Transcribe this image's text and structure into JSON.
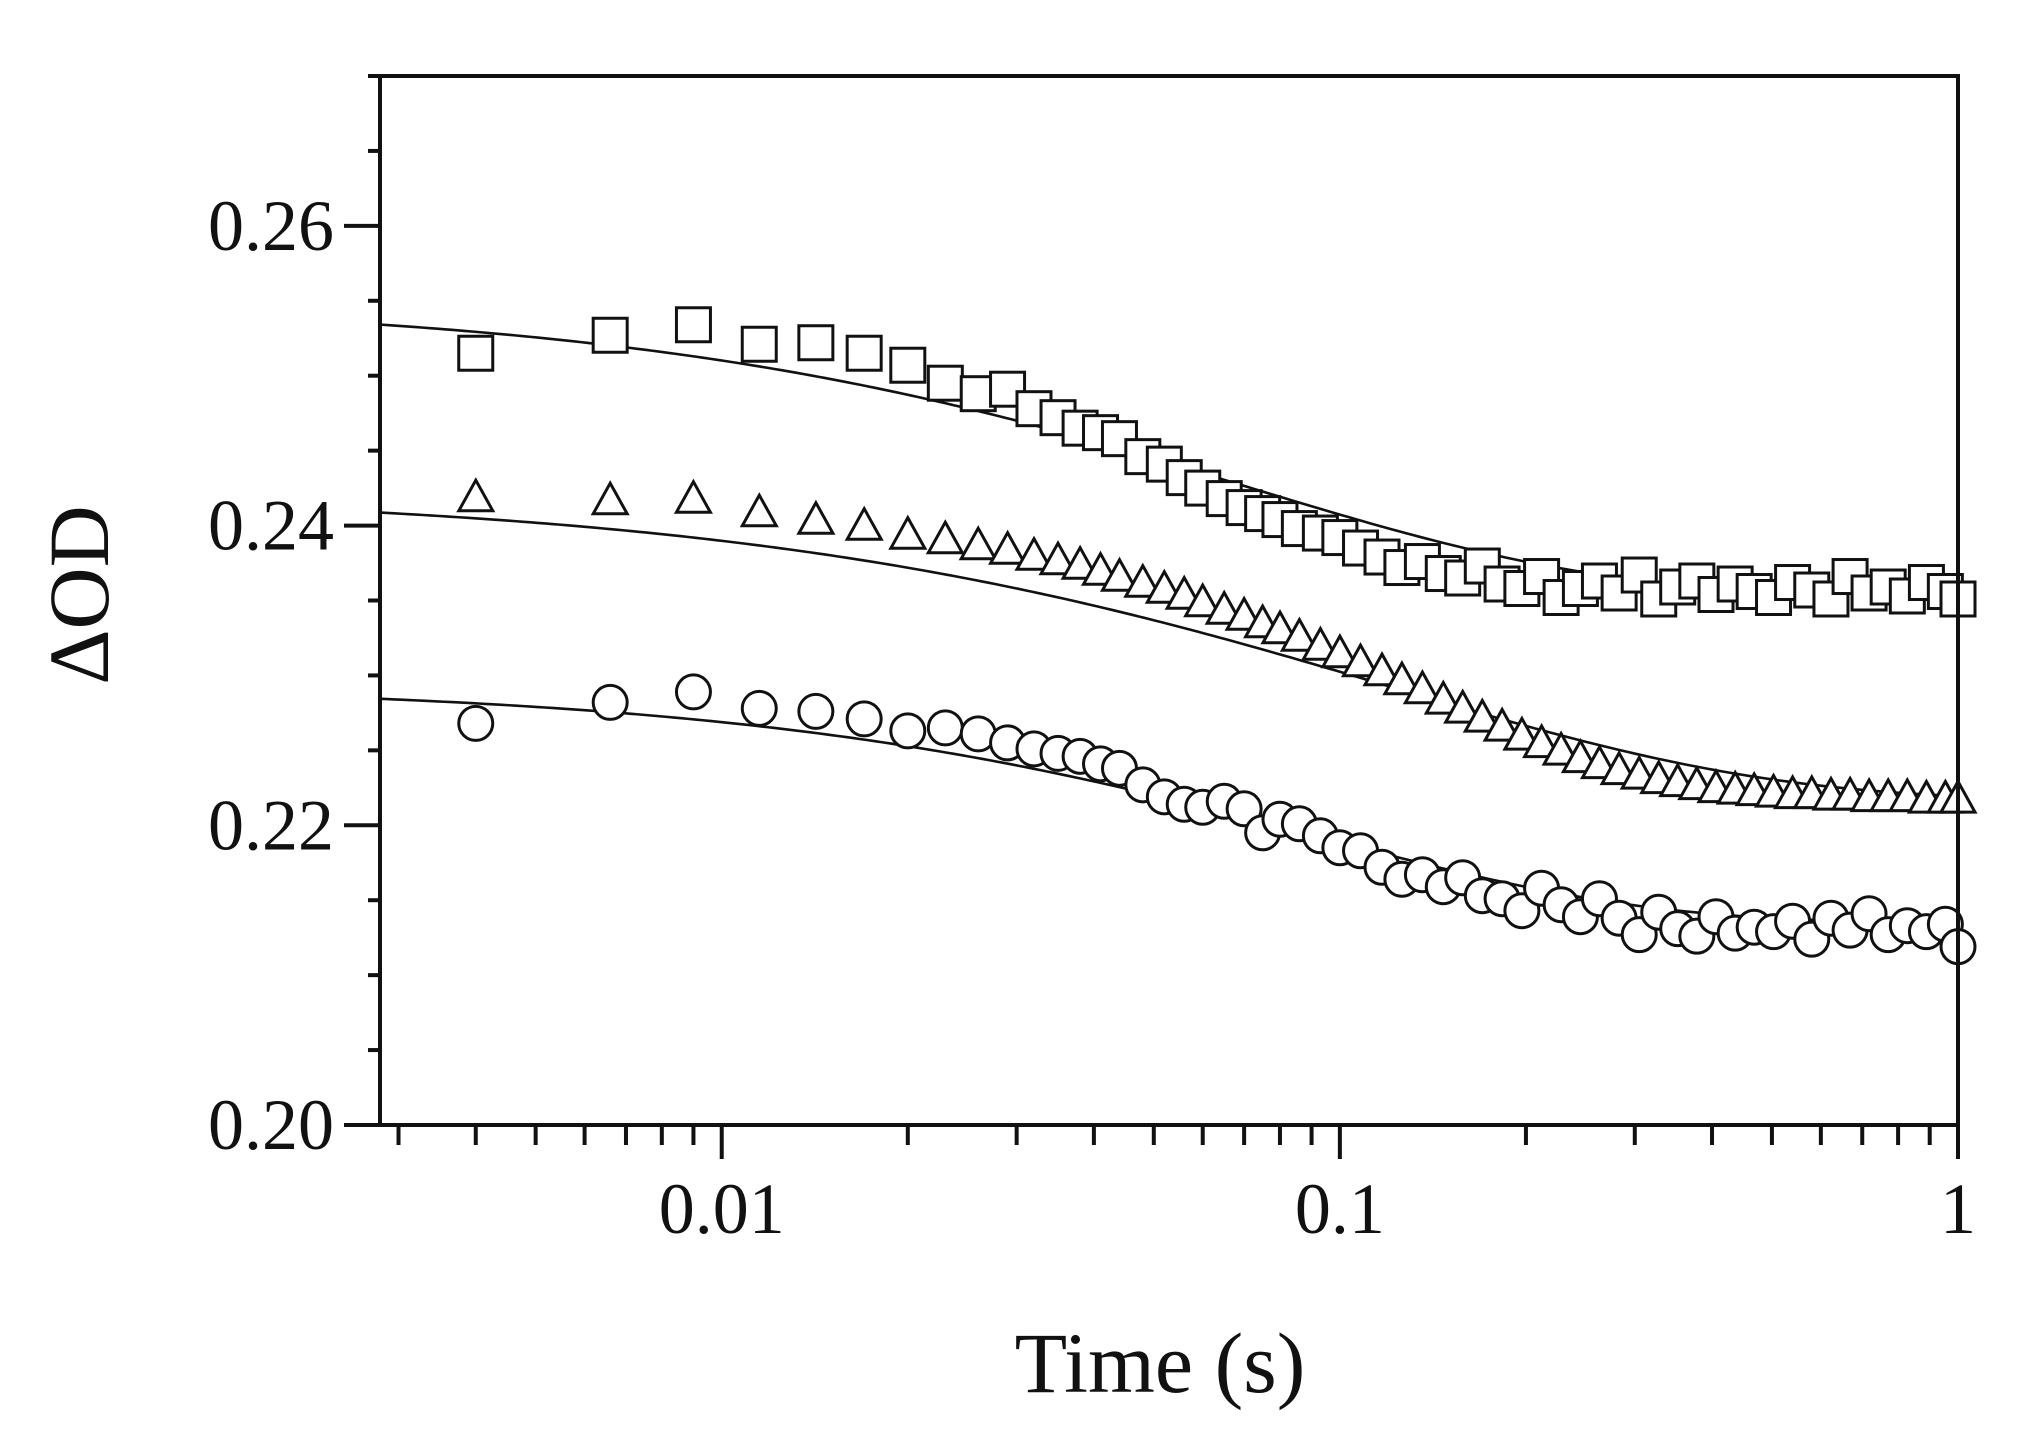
{
  "chart_data": {
    "type": "scatter",
    "title": "",
    "xlabel": "Time (s)",
    "ylabel": "ΔOD",
    "x_scale": "log",
    "xlim": [
      0.0028,
      1
    ],
    "ylim": [
      0.2,
      0.27
    ],
    "x_ticks": [
      {
        "value": 0.01,
        "label": "0.01"
      },
      {
        "value": 0.1,
        "label": "0.1"
      },
      {
        "value": 1,
        "label": "1"
      }
    ],
    "y_ticks": [
      {
        "value": 0.2,
        "label": "0.20"
      },
      {
        "value": 0.22,
        "label": "0.22"
      },
      {
        "value": 0.24,
        "label": "0.24"
      },
      {
        "value": 0.26,
        "label": "0.26"
      }
    ],
    "series": [
      {
        "name": "squares",
        "marker": "square",
        "fit": {
          "y0": 0.2354,
          "amp": 0.0197,
          "tau": 0.07,
          "beta": 0.75
        },
        "points": [
          [
            0.004,
            0.2515
          ],
          [
            0.0066,
            0.2527
          ],
          [
            0.009,
            0.2534
          ],
          [
            0.0115,
            0.2521
          ],
          [
            0.0142,
            0.2522
          ],
          [
            0.017,
            0.2515
          ],
          [
            0.02,
            0.2507
          ],
          [
            0.023,
            0.2495
          ],
          [
            0.026,
            0.2488
          ],
          [
            0.029,
            0.2491
          ],
          [
            0.032,
            0.2478
          ],
          [
            0.035,
            0.2472
          ],
          [
            0.038,
            0.2465
          ],
          [
            0.041,
            0.2462
          ],
          [
            0.044,
            0.2458
          ],
          [
            0.048,
            0.2446
          ],
          [
            0.052,
            0.2441
          ],
          [
            0.056,
            0.2432
          ],
          [
            0.06,
            0.2425
          ],
          [
            0.065,
            0.2418
          ],
          [
            0.07,
            0.2412
          ],
          [
            0.075,
            0.2408
          ],
          [
            0.08,
            0.2404
          ],
          [
            0.086,
            0.2398
          ],
          [
            0.093,
            0.2395
          ],
          [
            0.1,
            0.2392
          ],
          [
            0.108,
            0.2385
          ],
          [
            0.117,
            0.2379
          ],
          [
            0.126,
            0.2372
          ],
          [
            0.136,
            0.2376
          ],
          [
            0.147,
            0.2368
          ],
          [
            0.158,
            0.2365
          ],
          [
            0.17,
            0.2373
          ],
          [
            0.183,
            0.2361
          ],
          [
            0.197,
            0.2358
          ],
          [
            0.212,
            0.2366
          ],
          [
            0.228,
            0.2352
          ],
          [
            0.245,
            0.2358
          ],
          [
            0.263,
            0.2363
          ],
          [
            0.283,
            0.2355
          ],
          [
            0.305,
            0.2367
          ],
          [
            0.328,
            0.2351
          ],
          [
            0.352,
            0.2359
          ],
          [
            0.378,
            0.2363
          ],
          [
            0.406,
            0.2354
          ],
          [
            0.436,
            0.2361
          ],
          [
            0.468,
            0.2356
          ],
          [
            0.503,
            0.2352
          ],
          [
            0.54,
            0.2362
          ],
          [
            0.58,
            0.2357
          ],
          [
            0.623,
            0.2351
          ],
          [
            0.669,
            0.2366
          ],
          [
            0.718,
            0.2355
          ],
          [
            0.771,
            0.2359
          ],
          [
            0.828,
            0.2353
          ],
          [
            0.889,
            0.2362
          ],
          [
            0.954,
            0.2356
          ],
          [
            1.0,
            0.2351
          ]
        ]
      },
      {
        "name": "triangles",
        "marker": "triangle",
        "fit": {
          "y0": 0.2217,
          "amp": 0.0206,
          "tau": 0.12,
          "beta": 0.7
        },
        "points": [
          [
            0.004,
            0.2418
          ],
          [
            0.0066,
            0.2416
          ],
          [
            0.009,
            0.2417
          ],
          [
            0.0115,
            0.2408
          ],
          [
            0.0142,
            0.2403
          ],
          [
            0.017,
            0.2399
          ],
          [
            0.02,
            0.2393
          ],
          [
            0.023,
            0.239
          ],
          [
            0.026,
            0.2386
          ],
          [
            0.029,
            0.2383
          ],
          [
            0.032,
            0.2379
          ],
          [
            0.035,
            0.2376
          ],
          [
            0.038,
            0.2373
          ],
          [
            0.041,
            0.2369
          ],
          [
            0.044,
            0.2365
          ],
          [
            0.048,
            0.2361
          ],
          [
            0.052,
            0.2357
          ],
          [
            0.056,
            0.2353
          ],
          [
            0.06,
            0.2348
          ],
          [
            0.065,
            0.2343
          ],
          [
            0.07,
            0.2339
          ],
          [
            0.075,
            0.2334
          ],
          [
            0.08,
            0.233
          ],
          [
            0.086,
            0.2325
          ],
          [
            0.093,
            0.2319
          ],
          [
            0.1,
            0.2314
          ],
          [
            0.108,
            0.2308
          ],
          [
            0.117,
            0.2302
          ],
          [
            0.126,
            0.2296
          ],
          [
            0.136,
            0.229
          ],
          [
            0.147,
            0.2283
          ],
          [
            0.158,
            0.2277
          ],
          [
            0.17,
            0.2271
          ],
          [
            0.183,
            0.2265
          ],
          [
            0.197,
            0.2259
          ],
          [
            0.212,
            0.2254
          ],
          [
            0.228,
            0.2249
          ],
          [
            0.245,
            0.2244
          ],
          [
            0.263,
            0.224
          ],
          [
            0.283,
            0.2236
          ],
          [
            0.305,
            0.2233
          ],
          [
            0.328,
            0.223
          ],
          [
            0.352,
            0.2228
          ],
          [
            0.378,
            0.2226
          ],
          [
            0.406,
            0.2224
          ],
          [
            0.436,
            0.2223
          ],
          [
            0.468,
            0.2222
          ],
          [
            0.503,
            0.2221
          ],
          [
            0.54,
            0.222
          ],
          [
            0.58,
            0.222
          ],
          [
            0.623,
            0.2219
          ],
          [
            0.669,
            0.2219
          ],
          [
            0.718,
            0.2218
          ],
          [
            0.771,
            0.2218
          ],
          [
            0.828,
            0.2218
          ],
          [
            0.889,
            0.2217
          ],
          [
            0.954,
            0.2217
          ],
          [
            1.0,
            0.2217
          ]
        ]
      },
      {
        "name": "circles",
        "marker": "circle",
        "fit": {
          "y0": 0.2135,
          "amp": 0.0159,
          "tau": 0.09,
          "beta": 0.8
        },
        "points": [
          [
            0.004,
            0.2268
          ],
          [
            0.0066,
            0.2282
          ],
          [
            0.009,
            0.2289
          ],
          [
            0.0115,
            0.2278
          ],
          [
            0.0142,
            0.2276
          ],
          [
            0.017,
            0.2271
          ],
          [
            0.02,
            0.2263
          ],
          [
            0.023,
            0.2265
          ],
          [
            0.026,
            0.2261
          ],
          [
            0.029,
            0.2255
          ],
          [
            0.032,
            0.2251
          ],
          [
            0.035,
            0.2248
          ],
          [
            0.038,
            0.2246
          ],
          [
            0.041,
            0.2241
          ],
          [
            0.044,
            0.2238
          ],
          [
            0.048,
            0.2227
          ],
          [
            0.052,
            0.2219
          ],
          [
            0.056,
            0.2214
          ],
          [
            0.06,
            0.2212
          ],
          [
            0.065,
            0.2216
          ],
          [
            0.07,
            0.2211
          ],
          [
            0.075,
            0.2195
          ],
          [
            0.08,
            0.2204
          ],
          [
            0.086,
            0.2201
          ],
          [
            0.093,
            0.2193
          ],
          [
            0.1,
            0.2185
          ],
          [
            0.108,
            0.2183
          ],
          [
            0.117,
            0.2172
          ],
          [
            0.126,
            0.2164
          ],
          [
            0.136,
            0.2167
          ],
          [
            0.147,
            0.2159
          ],
          [
            0.158,
            0.2165
          ],
          [
            0.17,
            0.2153
          ],
          [
            0.183,
            0.2151
          ],
          [
            0.197,
            0.2143
          ],
          [
            0.212,
            0.2158
          ],
          [
            0.228,
            0.2147
          ],
          [
            0.245,
            0.2139
          ],
          [
            0.263,
            0.2151
          ],
          [
            0.283,
            0.2138
          ],
          [
            0.305,
            0.2127
          ],
          [
            0.328,
            0.2142
          ],
          [
            0.352,
            0.2131
          ],
          [
            0.378,
            0.2126
          ],
          [
            0.406,
            0.2139
          ],
          [
            0.436,
            0.2128
          ],
          [
            0.468,
            0.2132
          ],
          [
            0.503,
            0.2129
          ],
          [
            0.54,
            0.2136
          ],
          [
            0.58,
            0.2124
          ],
          [
            0.623,
            0.2138
          ],
          [
            0.669,
            0.213
          ],
          [
            0.718,
            0.2141
          ],
          [
            0.771,
            0.2127
          ],
          [
            0.828,
            0.2133
          ],
          [
            0.889,
            0.2129
          ],
          [
            0.954,
            0.2134
          ],
          [
            1.0,
            0.2119
          ]
        ]
      }
    ]
  }
}
